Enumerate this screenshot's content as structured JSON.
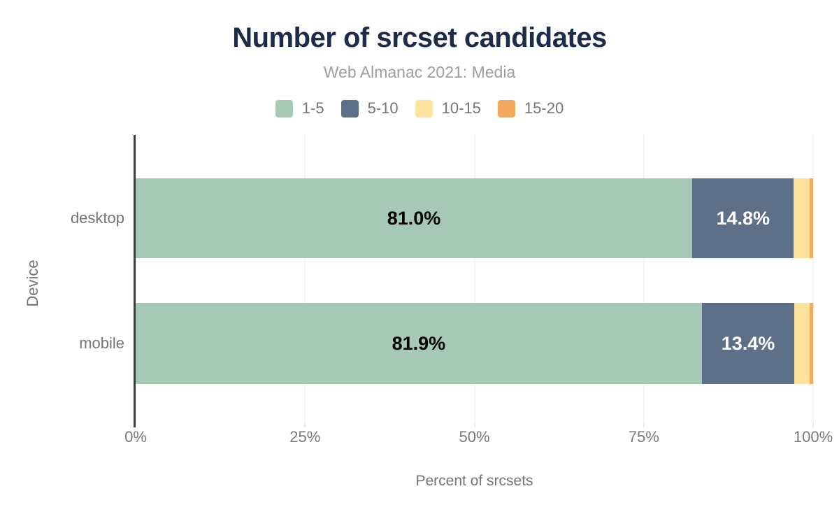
{
  "chart_data": {
    "type": "bar",
    "orientation": "horizontal",
    "stacked": true,
    "normalized_rows": true,
    "title": "Number of srcset candidates",
    "subtitle": "Web Almanac 2021: Media",
    "xlabel": "Percent of srcsets",
    "ylabel": "Device",
    "categories": [
      "desktop",
      "mobile"
    ],
    "series": [
      {
        "name": "1-5",
        "color": "#a7c8b7",
        "values": [
          81.0,
          81.9
        ],
        "value_labels": [
          "81.0%",
          "81.9%"
        ],
        "label_color": "#000000"
      },
      {
        "name": "5-10",
        "color": "#5e6f88",
        "values": [
          14.8,
          13.4
        ],
        "value_labels": [
          "14.8%",
          "13.4%"
        ],
        "label_color": "#ffffff"
      },
      {
        "name": "10-15",
        "color": "#fde39d",
        "values": [
          2.3,
          2.2
        ],
        "value_labels": [
          "",
          ""
        ],
        "label_color": "#000000"
      },
      {
        "name": "15-20",
        "color": "#f4a95f",
        "values": [
          0.5,
          0.5
        ],
        "value_labels": [
          "",
          ""
        ],
        "label_color": "#000000"
      }
    ],
    "xlim": [
      0,
      100
    ],
    "x_ticks": [
      0,
      25,
      50,
      75,
      100
    ],
    "x_tick_labels": [
      "0%",
      "25%",
      "50%",
      "75%",
      "100%"
    ],
    "grid": true,
    "legend_position": "top"
  },
  "colors": {
    "title": "#1e2b49",
    "subtitle": "#9e9e9e",
    "axis_text": "#757575",
    "gridline": "#e7e7e7",
    "axis_line": "#3a3b3f",
    "background": "#ffffff"
  }
}
